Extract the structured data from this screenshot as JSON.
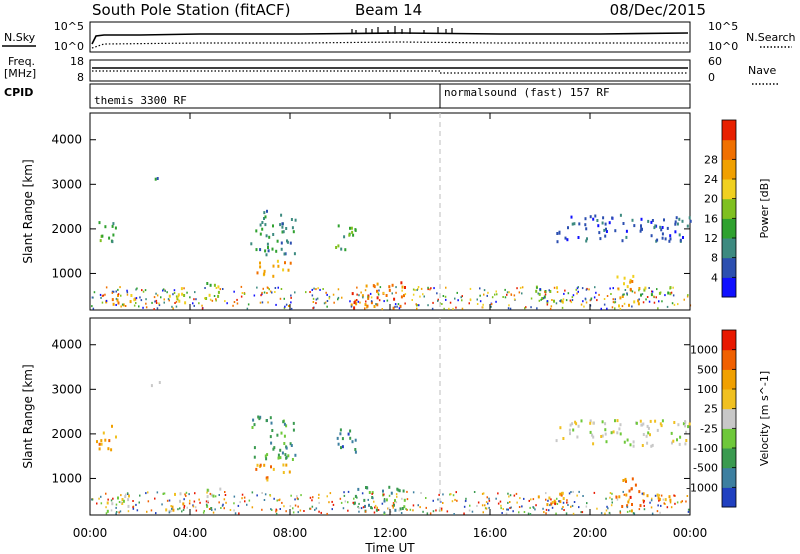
{
  "header": {
    "title": "South Pole Station (fitACF)",
    "beam": "Beam 14",
    "date": "08/Dec/2015"
  },
  "noise_panel": {
    "left_label": "N.Sky",
    "right_label": "N.Search",
    "left_ticks": [
      "10^5",
      "10^0"
    ],
    "right_ticks": [
      "10^5",
      "10^0"
    ]
  },
  "freq_panel": {
    "left_label_1": "Freq.",
    "left_label_2": "[MHz]",
    "right_label": "Nave",
    "left_ticks": [
      "18",
      "8"
    ],
    "right_ticks": [
      "60",
      "0"
    ]
  },
  "cpid_panel": {
    "label": "CPID",
    "segment_1": "themis 3300 RF",
    "segment_2": "normalsound (fast) 157 RF"
  },
  "chart_data": [
    {
      "type": "heatmap",
      "name": "power",
      "ylabel": "Slant Range [km]",
      "yticks": [
        "1000",
        "2000",
        "3000",
        "4000"
      ],
      "ylim": [
        180,
        4600
      ],
      "xlim_hours": [
        0,
        24
      ],
      "colorbar": {
        "label": "Power [dB]",
        "ticks": [
          "4",
          "8",
          "12",
          "16",
          "20",
          "24",
          "28"
        ],
        "colors": [
          "#1010ff",
          "#2c4fb0",
          "#3d8a80",
          "#2fa12f",
          "#7fc020",
          "#f0d020",
          "#f0a000",
          "#f07000",
          "#e82000"
        ]
      },
      "regions": [
        {
          "t0": 0.2,
          "t1": 1.0,
          "r0": 1600,
          "r1": 2200,
          "level": 3
        },
        {
          "t0": 0.6,
          "t1": 1.8,
          "r0": 250,
          "r1": 600,
          "level": 6
        },
        {
          "t0": 2.3,
          "t1": 2.9,
          "r0": 3050,
          "r1": 3150,
          "level": 2
        },
        {
          "t0": 3.0,
          "t1": 3.8,
          "r0": 250,
          "r1": 650,
          "level": 5
        },
        {
          "t0": 4.6,
          "t1": 5.2,
          "r0": 250,
          "r1": 800,
          "level": 4
        },
        {
          "t0": 6.4,
          "t1": 8.2,
          "r0": 1400,
          "r1": 2400,
          "level": 2
        },
        {
          "t0": 6.6,
          "t1": 8.0,
          "r0": 900,
          "r1": 1300,
          "level": 6
        },
        {
          "t0": 9.8,
          "t1": 10.6,
          "r0": 1500,
          "r1": 2200,
          "level": 3
        },
        {
          "t0": 10.4,
          "t1": 12.6,
          "r0": 200,
          "r1": 800,
          "level": 7
        },
        {
          "t0": 17.8,
          "t1": 19.0,
          "r0": 250,
          "r1": 700,
          "level": 4
        },
        {
          "t0": 18.6,
          "t1": 24.0,
          "r0": 1700,
          "r1": 2300,
          "level": 1
        },
        {
          "t0": 21.0,
          "t1": 22.0,
          "r0": 250,
          "r1": 1000,
          "level": 6
        },
        {
          "t0": 22.0,
          "t1": 23.6,
          "r0": 500,
          "r1": 700,
          "level": 4
        }
      ]
    },
    {
      "type": "heatmap",
      "name": "velocity",
      "ylabel": "Slant Range [km]",
      "yticks": [
        "1000",
        "2000",
        "3000",
        "4000"
      ],
      "ylim": [
        180,
        4600
      ],
      "xlim_hours": [
        0,
        24
      ],
      "colorbar": {
        "label": "Velocity [m s^-1]",
        "ticks": [
          "1000",
          "500",
          "100",
          "25",
          "-25",
          "-100",
          "-500",
          "-1000"
        ],
        "colors": [
          "#2040c0",
          "#3d7fa0",
          "#3a9a50",
          "#6ec83a",
          "#c8c8c8",
          "#f0c020",
          "#f0a000",
          "#f06000",
          "#e81800"
        ]
      },
      "regions": [
        {
          "t0": 0.2,
          "t1": 1.0,
          "r0": 1600,
          "r1": 2200,
          "level": 6
        },
        {
          "t0": 0.6,
          "t1": 1.8,
          "r0": 250,
          "r1": 600,
          "level": 4
        },
        {
          "t0": 2.3,
          "t1": 2.9,
          "r0": 3050,
          "r1": 3150,
          "level": 4
        },
        {
          "t0": 3.0,
          "t1": 3.8,
          "r0": 250,
          "r1": 650,
          "level": 5
        },
        {
          "t0": 4.6,
          "t1": 5.2,
          "r0": 250,
          "r1": 800,
          "level": 3
        },
        {
          "t0": 6.4,
          "t1": 8.2,
          "r0": 1400,
          "r1": 2400,
          "level": 2
        },
        {
          "t0": 6.6,
          "t1": 8.0,
          "r0": 900,
          "r1": 1300,
          "level": 6
        },
        {
          "t0": 9.8,
          "t1": 10.6,
          "r0": 1500,
          "r1": 2200,
          "level": 1
        },
        {
          "t0": 10.4,
          "t1": 12.6,
          "r0": 200,
          "r1": 800,
          "level": 2
        },
        {
          "t0": 17.8,
          "t1": 19.0,
          "r0": 250,
          "r1": 700,
          "level": 6
        },
        {
          "t0": 18.6,
          "t1": 24.0,
          "r0": 1700,
          "r1": 2300,
          "level": 4
        },
        {
          "t0": 21.0,
          "t1": 22.0,
          "r0": 250,
          "r1": 1000,
          "level": 7
        },
        {
          "t0": 22.0,
          "t1": 23.6,
          "r0": 500,
          "r1": 700,
          "level": 6
        }
      ]
    }
  ],
  "x_axis": {
    "label": "Time UT",
    "ticks": [
      "00:00",
      "04:00",
      "08:00",
      "12:00",
      "16:00",
      "20:00",
      "00:00"
    ]
  }
}
